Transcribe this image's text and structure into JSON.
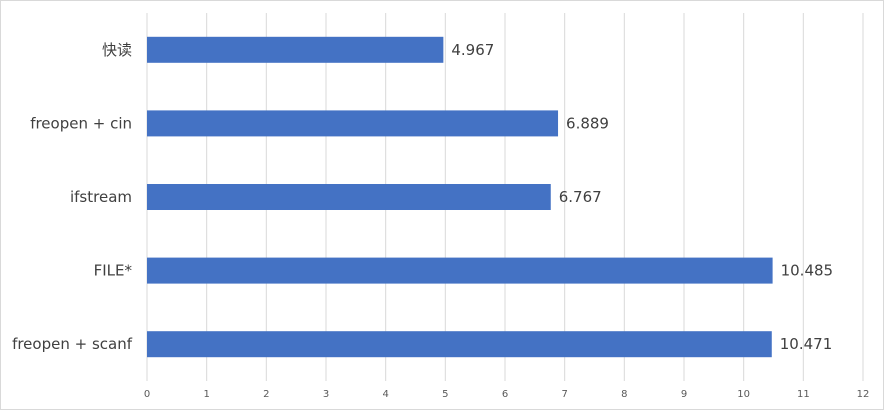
{
  "chart_data": {
    "type": "bar",
    "orientation": "horizontal",
    "categories": [
      "快读",
      "freopen + cin",
      "ifstream",
      "FILE*",
      "freopen + scanf"
    ],
    "values": [
      4.967,
      6.889,
      6.767,
      10.485,
      10.471
    ],
    "data_labels": [
      "4.967",
      "6.889",
      "6.767",
      "10.485",
      "10.471"
    ],
    "xlim": [
      0,
      12
    ],
    "x_ticks": [
      0,
      1,
      2,
      3,
      4,
      5,
      6,
      7,
      8,
      9,
      10,
      11,
      12
    ],
    "x_tick_labels": [
      "0",
      "1",
      "2",
      "3",
      "4",
      "5",
      "6",
      "7",
      "8",
      "9",
      "10",
      "11",
      "12"
    ],
    "title": "",
    "xlabel": "",
    "ylabel": "",
    "grid": "vertical",
    "legend": "none",
    "bar_color": "#4472c4",
    "grid_color": "#d9d9d9",
    "text_color": "#404040"
  }
}
